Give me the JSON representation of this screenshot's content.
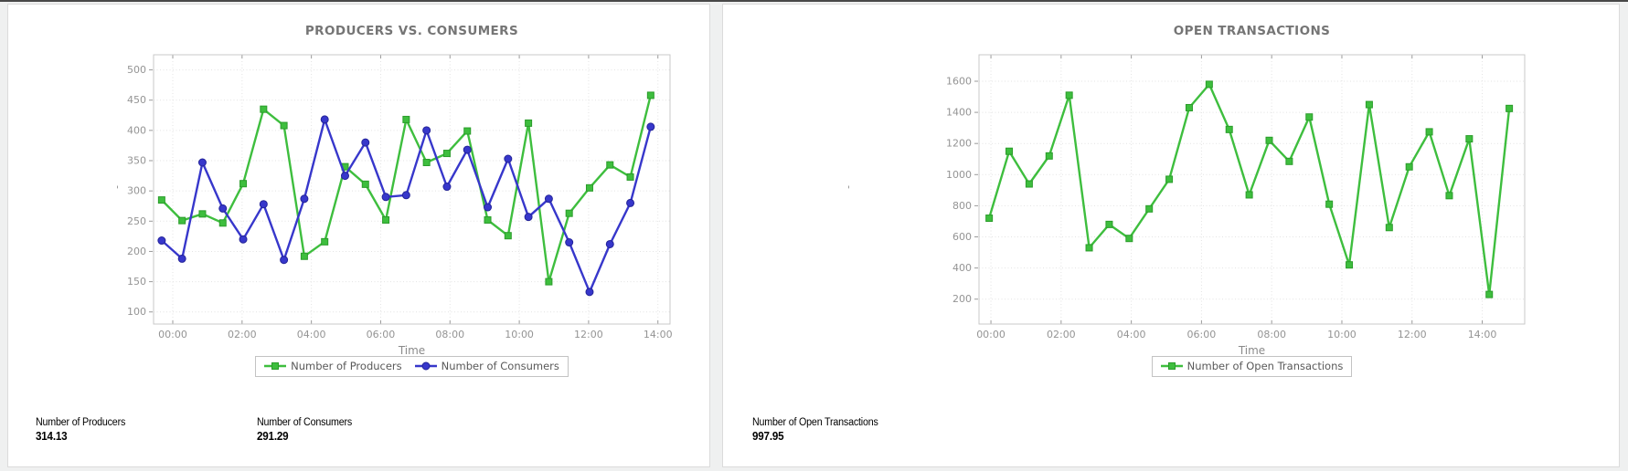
{
  "chart_data": [
    {
      "type": "line",
      "title": "PRODUCERS VS. CONSUMERS",
      "xlabel": "Time",
      "ylabel_mark": "'",
      "x_tick_labels": [
        "00:00",
        "02:00",
        "04:00",
        "06:00",
        "08:00",
        "10:00",
        "12:00",
        "14:00"
      ],
      "x_tick_hours": [
        0,
        2,
        4,
        6,
        8,
        10,
        12,
        14
      ],
      "x_min_hour": -0.554,
      "x_max_hour": 14.35,
      "x_start_hour": -0.32,
      "x_step_hour": 0.588,
      "ylim": [
        80,
        525
      ],
      "y_ticks": [
        100,
        150,
        200,
        250,
        300,
        350,
        400,
        450,
        500
      ],
      "grid": true,
      "legend_position": "bottom",
      "series": [
        {
          "name": "Number of Producers",
          "color": "#3ebe3e",
          "edge_color": "#2a9c2a",
          "marker": "square",
          "values": [
            285,
            251,
            262,
            247,
            312,
            435,
            408,
            192,
            216,
            340,
            311,
            252,
            418,
            347,
            362,
            399,
            252,
            226,
            412,
            150,
            263,
            305,
            343,
            323,
            458
          ]
        },
        {
          "name": "Number of Consumers",
          "color": "#3737cb",
          "edge_color": "#232398",
          "marker": "circle",
          "values": [
            218,
            188,
            347,
            271,
            220,
            278,
            186,
            287,
            418,
            325,
            380,
            290,
            293,
            400,
            307,
            368,
            273,
            353,
            257,
            287,
            215,
            133,
            212,
            280,
            406
          ]
        }
      ]
    },
    {
      "type": "line",
      "title": "OPEN TRANSACTIONS",
      "xlabel": "Time",
      "ylabel_mark": "'",
      "x_tick_labels": [
        "00:00",
        "02:00",
        "04:00",
        "06:00",
        "08:00",
        "10:00",
        "12:00",
        "14:00"
      ],
      "x_tick_hours": [
        0,
        2,
        4,
        6,
        8,
        10,
        12,
        14
      ],
      "x_min_hour": -0.34,
      "x_max_hour": 15.21,
      "x_start_hour": -0.05,
      "x_step_hour": 0.57,
      "ylim": [
        40,
        1770
      ],
      "y_ticks": [
        200,
        400,
        600,
        800,
        1000,
        1200,
        1400,
        1600
      ],
      "grid": true,
      "legend_position": "bottom",
      "series": [
        {
          "name": "Number of Open Transactions",
          "color": "#3ebe3e",
          "edge_color": "#2a9c2a",
          "marker": "square",
          "values": [
            720,
            1150,
            940,
            1120,
            1510,
            530,
            680,
            590,
            780,
            970,
            1430,
            1580,
            1290,
            870,
            1220,
            1085,
            1370,
            810,
            420,
            1450,
            660,
            1050,
            1275,
            865,
            1230,
            230,
            1425
          ]
        }
      ]
    }
  ],
  "panels": [
    {
      "stats": [
        {
          "label": "Number of Producers",
          "value": "314.13"
        },
        {
          "label": "Number of Consumers",
          "value": "291.29"
        }
      ]
    },
    {
      "stats": [
        {
          "label": "Number of Open Transactions",
          "value": "997.95"
        }
      ]
    }
  ]
}
